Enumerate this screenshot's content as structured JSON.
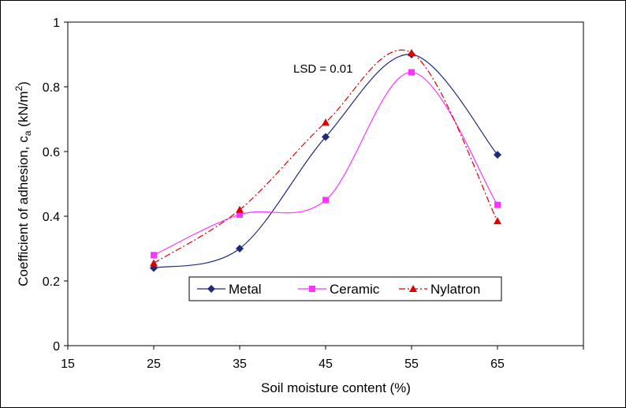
{
  "chart_data": {
    "type": "line",
    "title": "",
    "xlabel": "Soil moisture content (%)",
    "ylabel": "Coefficient of adhesion, c",
    "ylabel_sub": "a",
    "ylabel_unit_start": " (kN/m",
    "ylabel_unit_sup": "2",
    "ylabel_unit_end": ")",
    "xlim": [
      15,
      75
    ],
    "ylim": [
      0,
      1
    ],
    "xticks": [
      15,
      25,
      35,
      45,
      55,
      65
    ],
    "yticks": [
      0,
      0.2,
      0.4,
      0.6,
      0.8,
      1
    ],
    "x_tick_labels": [
      "15",
      "25",
      "35",
      "45",
      "55",
      "65"
    ],
    "y_tick_labels": [
      "0",
      "0.2",
      "0.4",
      "0.6",
      "0.8",
      "1"
    ],
    "x": [
      25,
      35,
      45,
      55,
      65
    ],
    "series": [
      {
        "name": "Metal",
        "values": [
          0.24,
          0.3,
          0.645,
          0.9,
          0.59
        ],
        "color": "#1f2a7a",
        "marker": "diamond",
        "line": "solid-smooth"
      },
      {
        "name": "Ceramic",
        "values": [
          0.28,
          0.405,
          0.45,
          0.845,
          0.435
        ],
        "color": "#ff33ff",
        "marker": "square",
        "line": "solid-smooth"
      },
      {
        "name": "Nylatron",
        "values": [
          0.255,
          0.42,
          0.69,
          0.905,
          0.385
        ],
        "color": "#e00000",
        "marker": "triangle",
        "line": "dash-dot-smooth"
      }
    ],
    "annotation": "LSD = 0.01",
    "grid": false,
    "legend_position": "lower-middle"
  }
}
